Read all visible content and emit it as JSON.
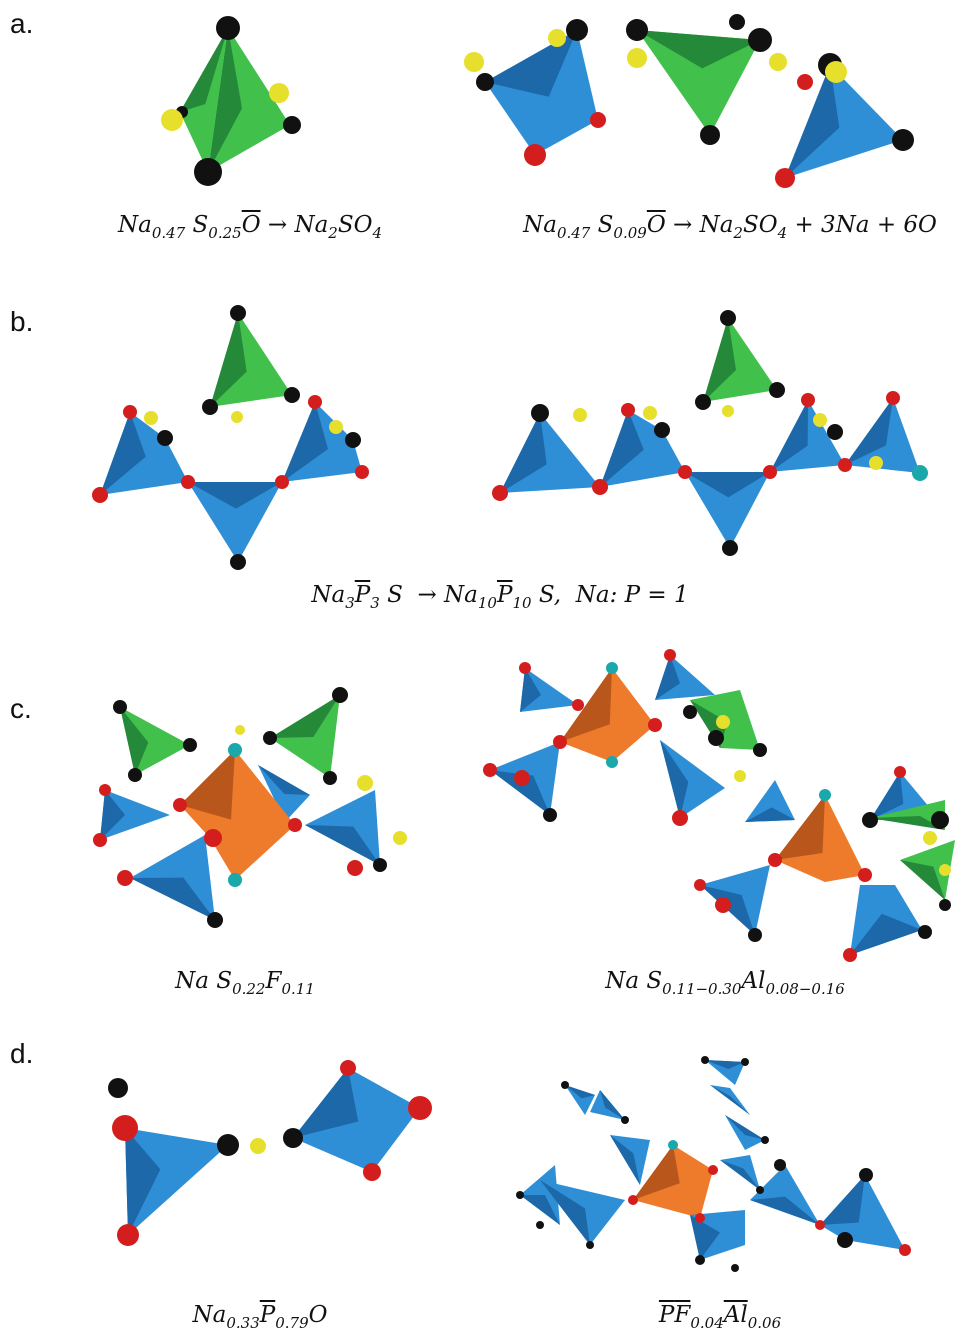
{
  "panels": [
    {
      "label": "a.",
      "captions": [
        {
          "runs": [
            {
              "text": "Na"
            },
            {
              "text": "0.47",
              "sub": true
            },
            {
              "text": " S"
            },
            {
              "text": "0.25",
              "sub": true
            },
            {
              "text": "O",
              "bar": true
            },
            {
              "text": " → Na"
            },
            {
              "text": "2",
              "sub": true
            },
            {
              "text": "SO"
            },
            {
              "text": "4",
              "sub": true
            }
          ]
        },
        {
          "runs": [
            {
              "text": "Na"
            },
            {
              "text": "0.47",
              "sub": true
            },
            {
              "text": " S"
            },
            {
              "text": "0.09",
              "sub": true
            },
            {
              "text": "O",
              "bar": true
            },
            {
              "text": " → Na"
            },
            {
              "text": "2",
              "sub": true
            },
            {
              "text": "SO"
            },
            {
              "text": "4",
              "sub": true
            },
            {
              "text": " + 3Na + 6O"
            }
          ]
        }
      ]
    },
    {
      "label": "b.",
      "captions": [
        {
          "runs": [
            {
              "text": "Na"
            },
            {
              "text": "3",
              "sub": true
            },
            {
              "text": "P",
              "bar": true
            },
            {
              "text": "3",
              "sub": true
            },
            {
              "text": " S  → Na"
            },
            {
              "text": "10",
              "sub": true
            },
            {
              "text": "P",
              "bar": true
            },
            {
              "text": "10",
              "sub": true
            },
            {
              "text": " S,  Na: P = 1"
            }
          ]
        }
      ]
    },
    {
      "label": "c.",
      "captions": [
        {
          "runs": [
            {
              "text": "Na S"
            },
            {
              "text": "0.22",
              "sub": true
            },
            {
              "text": "F"
            },
            {
              "text": "0.11",
              "sub": true
            }
          ]
        },
        {
          "runs": [
            {
              "text": "Na S"
            },
            {
              "text": "0.11−0.30",
              "sub": true
            },
            {
              "text": "Al"
            },
            {
              "text": "0.08−0.16",
              "sub": true
            }
          ]
        }
      ]
    },
    {
      "label": "d.",
      "captions": [
        {
          "runs": [
            {
              "text": "Na"
            },
            {
              "text": "0.33",
              "sub": true
            },
            {
              "text": "P",
              "bar": true
            },
            {
              "text": "0.79",
              "sub": true
            },
            {
              "text": "O"
            }
          ]
        },
        {
          "runs": [
            {
              "text": "P",
              "bar": true
            },
            {
              "text": "F",
              "bar": true
            },
            {
              "text": "0.04",
              "sub": true
            },
            {
              "text": "Al",
              "bar": true
            },
            {
              "text": "0.06",
              "sub": true
            }
          ]
        }
      ]
    }
  ]
}
